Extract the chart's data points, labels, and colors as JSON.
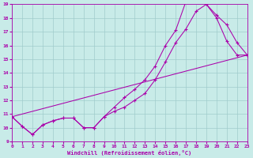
{
  "xlabel": "Windchill (Refroidissement éolien,°C)",
  "xlim": [
    0,
    23
  ],
  "ylim": [
    9,
    19
  ],
  "yticks": [
    9,
    10,
    11,
    12,
    13,
    14,
    15,
    16,
    17,
    18,
    19
  ],
  "xticks": [
    0,
    1,
    2,
    3,
    4,
    5,
    6,
    7,
    8,
    9,
    10,
    11,
    12,
    13,
    14,
    15,
    16,
    17,
    18,
    19,
    20,
    21,
    22,
    23
  ],
  "bg_color": "#c8ebe8",
  "grid_color": "#a0cccc",
  "line_color": "#aa00aa",
  "curve1_x": [
    0,
    1,
    2,
    3,
    4,
    5,
    6,
    7,
    8,
    9,
    10,
    11,
    12,
    13,
    14,
    15,
    16,
    17,
    18,
    19,
    20,
    21,
    22,
    23
  ],
  "curve1_y": [
    10.8,
    10.1,
    9.5,
    10.2,
    10.5,
    10.7,
    10.7,
    10.0,
    10.0,
    10.8,
    11.2,
    11.5,
    12.0,
    12.5,
    13.5,
    14.8,
    16.2,
    17.2,
    18.5,
    19.0,
    18.2,
    17.5,
    16.2,
    15.3
  ],
  "curve2_x": [
    0,
    1,
    2,
    3,
    4,
    5,
    6,
    7,
    8,
    9,
    10,
    11,
    12,
    13,
    14,
    15,
    16,
    17,
    18,
    19,
    20,
    21,
    22,
    23
  ],
  "curve2_y": [
    10.8,
    10.1,
    9.5,
    10.2,
    10.5,
    10.7,
    10.7,
    10.0,
    10.0,
    10.8,
    11.5,
    12.2,
    12.8,
    13.5,
    14.5,
    16.0,
    17.1,
    19.2,
    19.3,
    19.0,
    18.0,
    16.3,
    15.3,
    15.3
  ],
  "curve3_x": [
    0,
    23
  ],
  "curve3_y": [
    10.8,
    15.3
  ]
}
